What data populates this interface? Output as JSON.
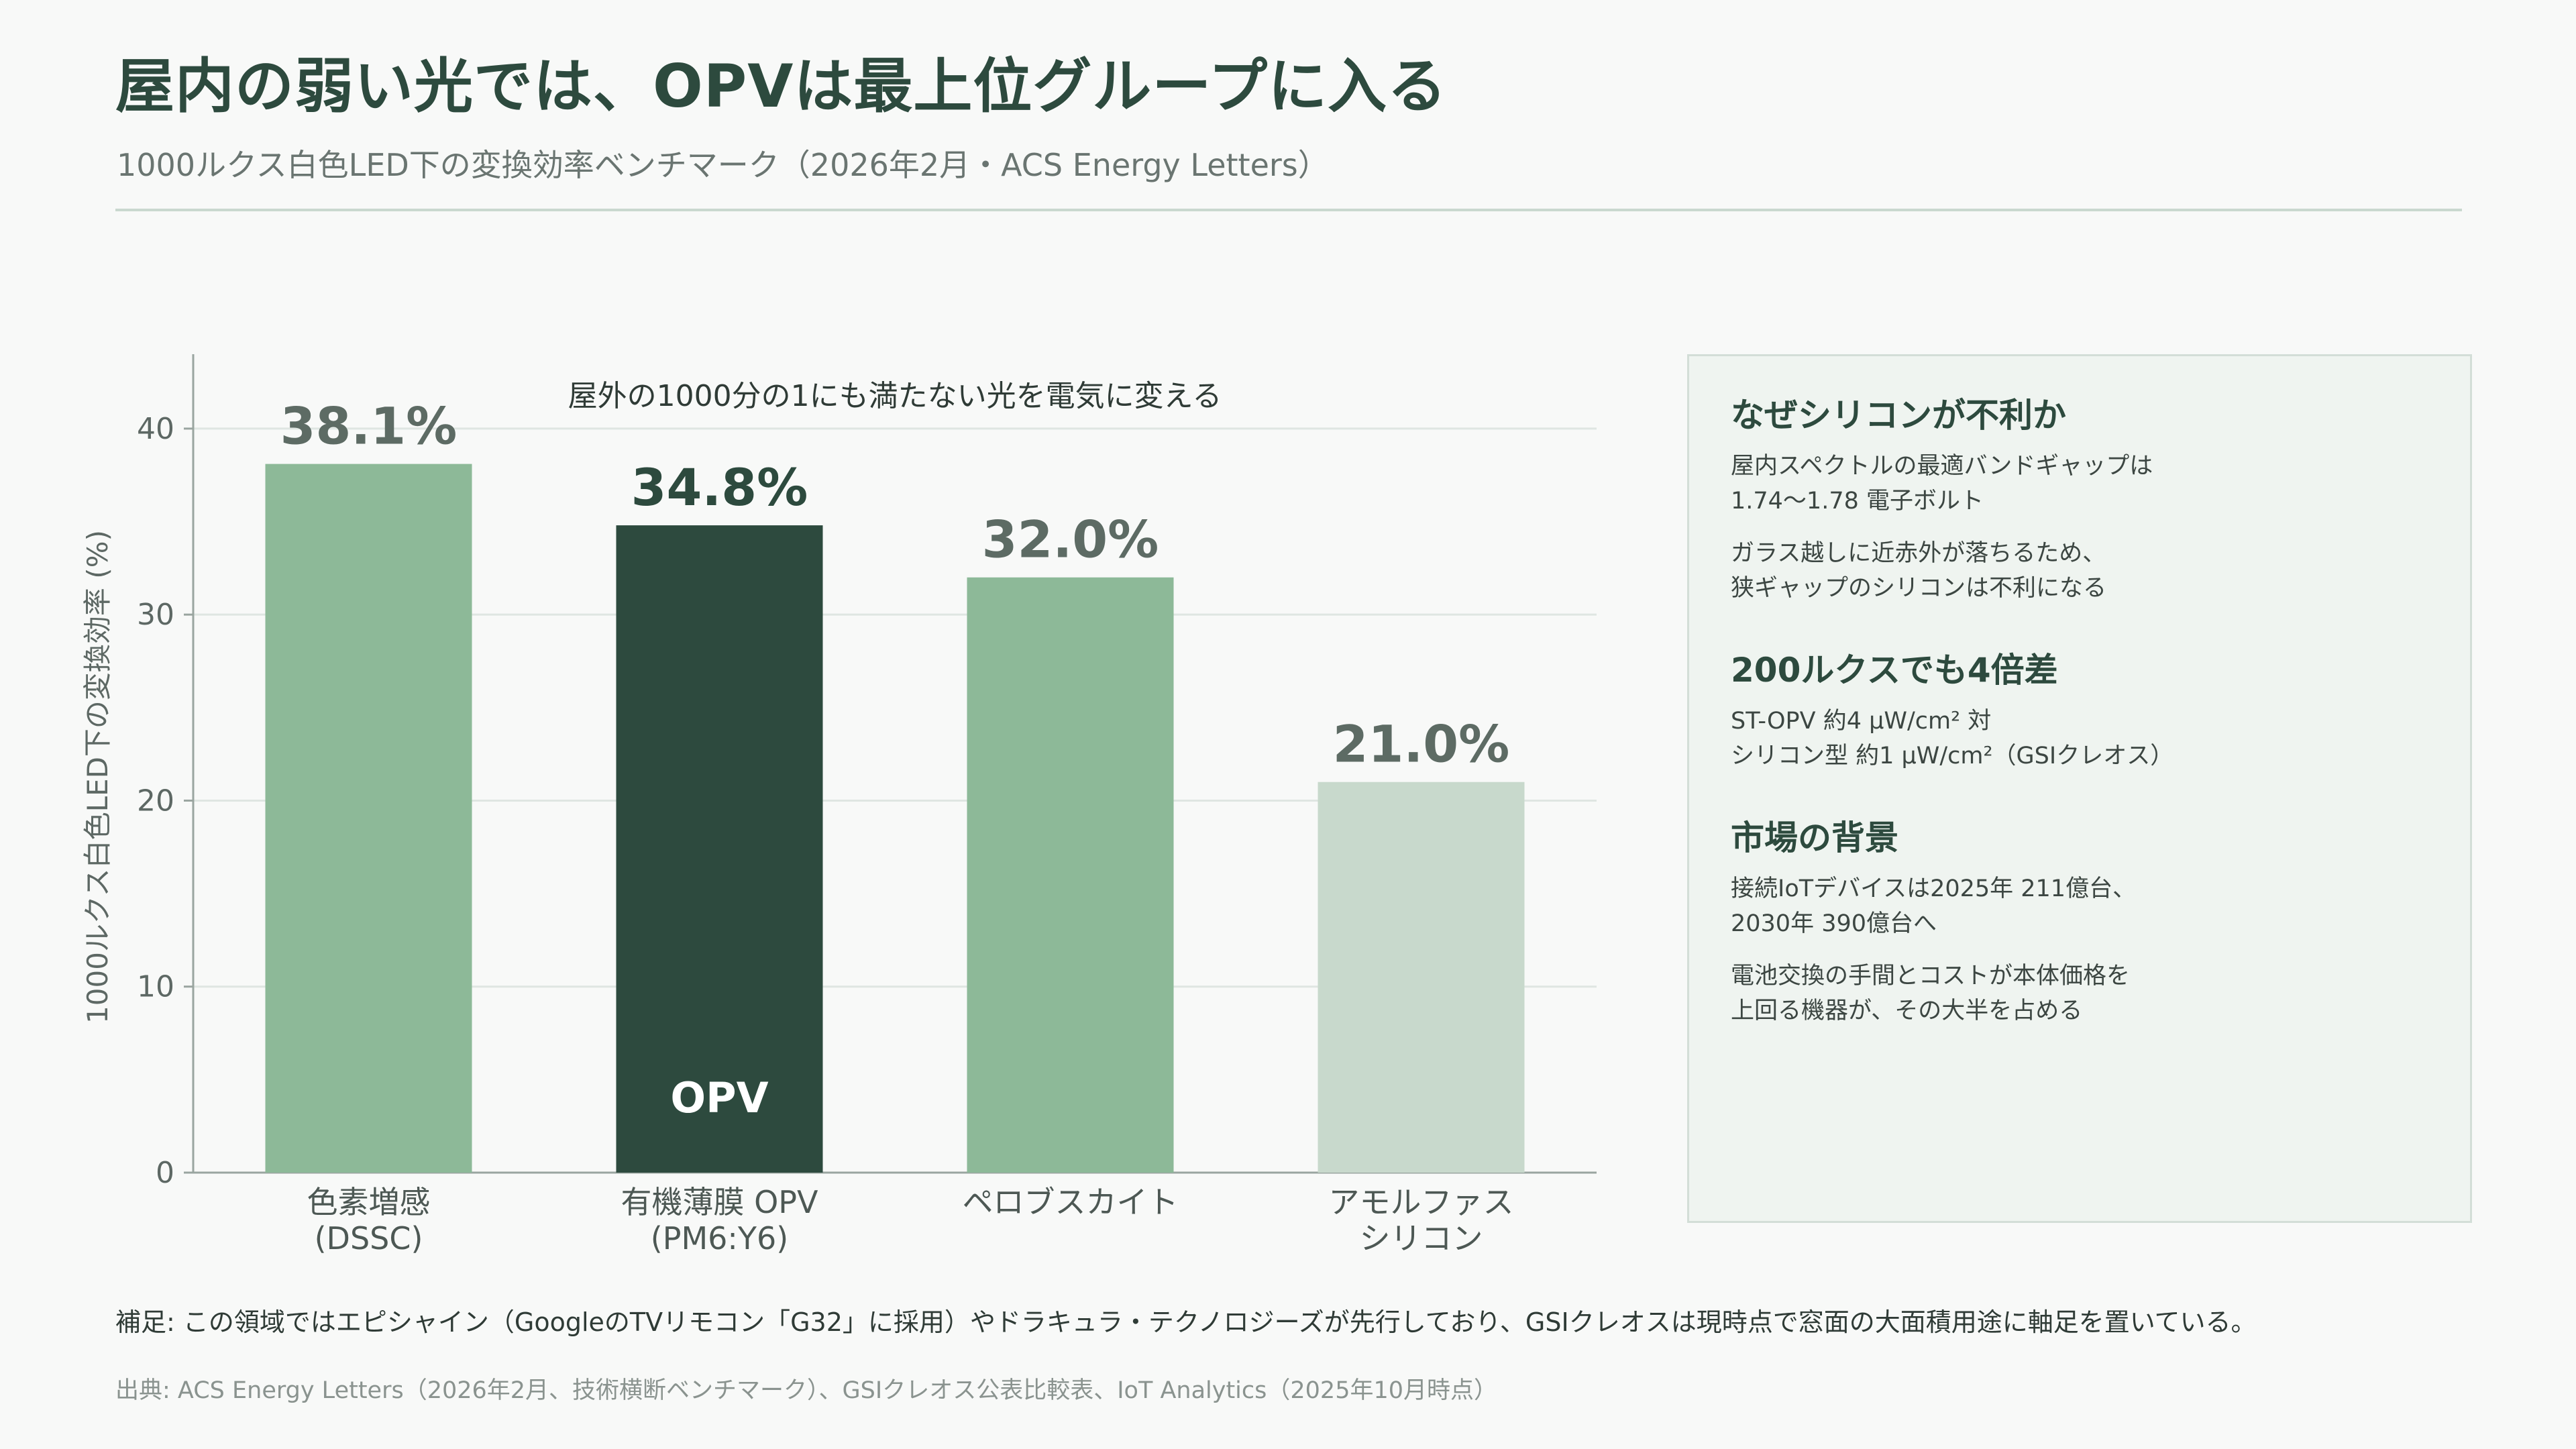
{
  "header": {
    "title": "屋内の弱い光では、OPVは最上位グループに入る",
    "subtitle": "1000ルクス白色LED下の変換効率ベンチマーク（2026年2月・ACS Energy Letters）"
  },
  "chart_data": {
    "type": "bar",
    "title": "屋外の1000分の1にも満たない光を電気に変える",
    "ylabel": "1000ルクス白色LED下の変換効率 (%)",
    "xlabel": "",
    "ylim": [
      0,
      44
    ],
    "yticks": [
      0,
      10,
      20,
      30,
      40
    ],
    "grid": true,
    "categories": [
      [
        "色素増感",
        "(DSSC)"
      ],
      [
        "有機薄膜 OPV",
        "(PM6:Y6)"
      ],
      [
        "ペロブスカイト"
      ],
      [
        "アモルファス",
        "シリコン"
      ]
    ],
    "values": [
      38.1,
      34.8,
      32.0,
      21.0
    ],
    "value_labels": [
      "38.1%",
      "34.8%",
      "32.0%",
      "21.0%"
    ],
    "colors": [
      "#8db998",
      "#2d4a3e",
      "#8db998",
      "#c8d9cc"
    ],
    "highlight_index": 1,
    "highlight_label": "OPV"
  },
  "sidebar": {
    "sections": [
      {
        "heading": "なぜシリコンが不利か",
        "paragraphs": [
          [
            "屋内スペクトルの最適バンドギャップは",
            "1.74〜1.78 電子ボルト"
          ],
          [
            "ガラス越しに近赤外が落ちるため、",
            "狭ギャップのシリコンは不利になる"
          ]
        ]
      },
      {
        "heading": "200ルクスでも4倍差",
        "paragraphs": [
          [
            "ST-OPV 約4 μW/cm² 対",
            "シリコン型 約1 μW/cm²（GSIクレオス）"
          ]
        ]
      },
      {
        "heading": "市場の背景",
        "paragraphs": [
          [
            "接続IoTデバイスは2025年 211億台、",
            "2030年 390億台へ"
          ],
          [
            "電池交換の手間とコストが本体価格を",
            "上回る機器が、その大半を占める"
          ]
        ]
      }
    ]
  },
  "footer": {
    "note": "補足: この領域ではエピシャイン（GoogleのTVリモコン「G32」に採用）やドラキュラ・テクノロジーズが先行しており、GSIクレオスは現時点で窓面の大面積用途に軸足を置いている。",
    "source": "出典: ACS Energy Letters（2026年2月、技術横断ベンチマーク）、GSIクレオス公表比較表、IoT Analytics（2025年10月時点）"
  }
}
